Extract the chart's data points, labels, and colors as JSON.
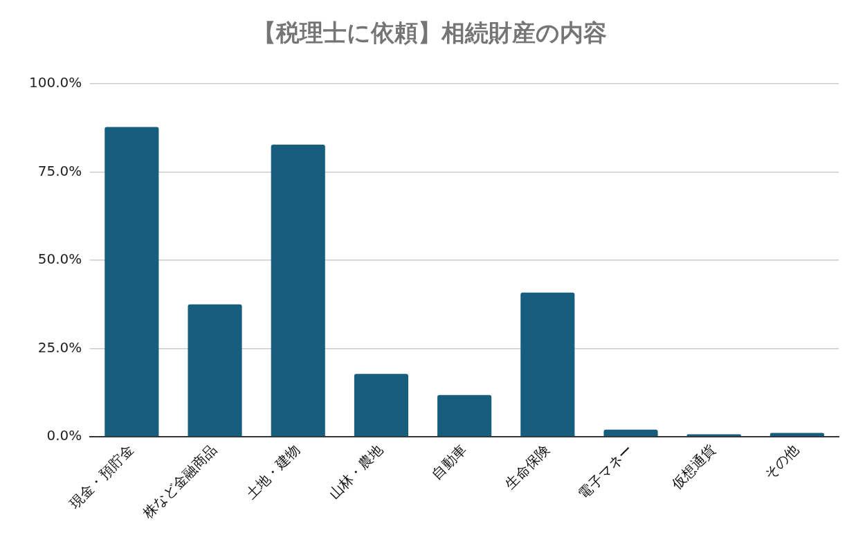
{
  "chart_data": {
    "type": "bar",
    "title": "【税理士に依頼】相続財産の内容",
    "categories": [
      "現金・預貯金",
      "株など金融商品",
      "土地・建物",
      "山林・農地",
      "自動車",
      "生命保険",
      "電子マネー",
      "仮想通貨",
      "その他"
    ],
    "values": [
      87.7,
      37.5,
      82.7,
      17.8,
      11.8,
      40.8,
      2.0,
      0.7,
      1.1
    ],
    "color": "#175e7e",
    "ylim": [
      0,
      100
    ],
    "yticks": [
      {
        "value": 0,
        "label": "0.0%"
      },
      {
        "value": 25,
        "label": "25.0%"
      },
      {
        "value": 50,
        "label": "50.0%"
      },
      {
        "value": 75,
        "label": "75.0%"
      },
      {
        "value": 100,
        "label": "100.0%"
      }
    ],
    "grid": "y"
  }
}
